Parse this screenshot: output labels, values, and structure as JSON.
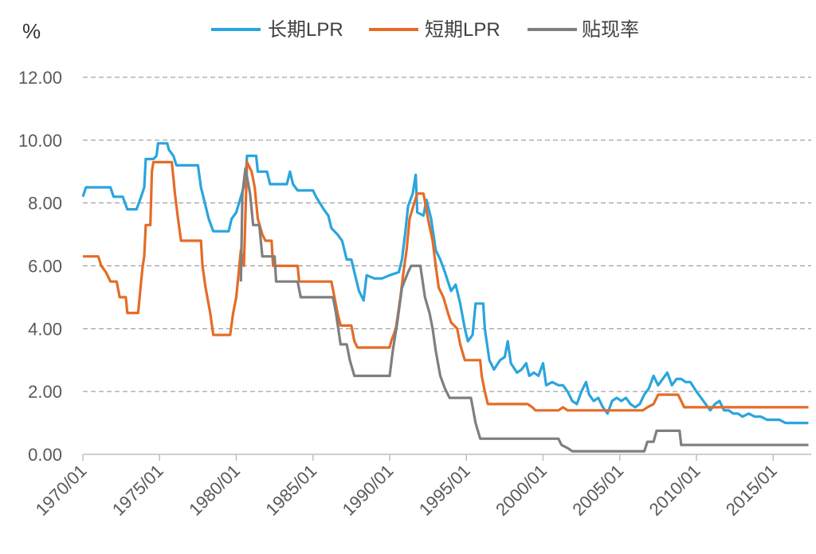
{
  "chart_data": {
    "type": "line",
    "unit_label": "%",
    "x_start": "1970/01",
    "x_tick_labels": [
      "1970/01",
      "1975/01",
      "1980/01",
      "1985/01",
      "1990/01",
      "1995/01",
      "2000/01",
      "2005/01",
      "2010/01",
      "2015/01"
    ],
    "y_tick_labels": [
      "0.00",
      "2.00",
      "4.00",
      "6.00",
      "8.00",
      "10.00",
      "12.00"
    ],
    "ylim": [
      0,
      12
    ],
    "grid": "horizontal dashed",
    "legend_position": "top-center",
    "series": [
      {
        "name": "长期LPR",
        "color": "#2aa5dd",
        "points": [
          [
            1970.0,
            8.2
          ],
          [
            1970.2,
            8.5
          ],
          [
            1971.8,
            8.5
          ],
          [
            1972.0,
            8.2
          ],
          [
            1972.6,
            8.2
          ],
          [
            1972.9,
            7.8
          ],
          [
            1973.5,
            7.8
          ],
          [
            1973.8,
            8.2
          ],
          [
            1974.0,
            8.5
          ],
          [
            1974.1,
            9.4
          ],
          [
            1974.6,
            9.4
          ],
          [
            1974.8,
            9.5
          ],
          [
            1974.9,
            9.9
          ],
          [
            1975.5,
            9.9
          ],
          [
            1975.6,
            9.7
          ],
          [
            1975.9,
            9.5
          ],
          [
            1976.1,
            9.2
          ],
          [
            1977.5,
            9.2
          ],
          [
            1977.7,
            8.5
          ],
          [
            1977.9,
            8.1
          ],
          [
            1978.2,
            7.5
          ],
          [
            1978.5,
            7.1
          ],
          [
            1979.5,
            7.1
          ],
          [
            1979.7,
            7.5
          ],
          [
            1980.0,
            7.7
          ],
          [
            1980.3,
            8.2
          ],
          [
            1980.6,
            8.7
          ],
          [
            1980.7,
            9.5
          ],
          [
            1981.3,
            9.5
          ],
          [
            1981.4,
            9.0
          ],
          [
            1982.0,
            9.0
          ],
          [
            1982.2,
            8.6
          ],
          [
            1983.3,
            8.6
          ],
          [
            1983.5,
            9.0
          ],
          [
            1983.7,
            8.6
          ],
          [
            1984.0,
            8.4
          ],
          [
            1984.5,
            8.4
          ],
          [
            1985.0,
            8.4
          ],
          [
            1985.2,
            8.2
          ],
          [
            1985.7,
            7.8
          ],
          [
            1986.0,
            7.6
          ],
          [
            1986.2,
            7.2
          ],
          [
            1986.6,
            7.0
          ],
          [
            1986.9,
            6.8
          ],
          [
            1987.2,
            6.2
          ],
          [
            1987.5,
            6.2
          ],
          [
            1987.8,
            5.6
          ],
          [
            1988.0,
            5.2
          ],
          [
            1988.3,
            4.9
          ],
          [
            1988.5,
            5.7
          ],
          [
            1989.0,
            5.6
          ],
          [
            1989.5,
            5.6
          ],
          [
            1990.0,
            5.7
          ],
          [
            1990.6,
            5.8
          ],
          [
            1990.8,
            6.2
          ],
          [
            1991.0,
            7.0
          ],
          [
            1991.2,
            7.9
          ],
          [
            1991.5,
            8.3
          ],
          [
            1991.7,
            8.9
          ],
          [
            1991.8,
            7.7
          ],
          [
            1992.2,
            7.6
          ],
          [
            1992.4,
            8.1
          ],
          [
            1992.7,
            7.5
          ],
          [
            1993.0,
            6.5
          ],
          [
            1993.3,
            6.2
          ],
          [
            1993.6,
            5.8
          ],
          [
            1994.0,
            5.2
          ],
          [
            1994.3,
            5.4
          ],
          [
            1994.6,
            4.8
          ],
          [
            1994.9,
            4.0
          ],
          [
            1995.1,
            3.6
          ],
          [
            1995.4,
            3.8
          ],
          [
            1995.6,
            4.8
          ],
          [
            1996.1,
            4.8
          ],
          [
            1996.2,
            4.0
          ],
          [
            1996.5,
            3.0
          ],
          [
            1996.8,
            2.7
          ],
          [
            1997.2,
            3.0
          ],
          [
            1997.5,
            3.1
          ],
          [
            1997.7,
            3.6
          ],
          [
            1997.9,
            2.9
          ],
          [
            1998.3,
            2.6
          ],
          [
            1998.6,
            2.7
          ],
          [
            1998.9,
            2.9
          ],
          [
            1999.1,
            2.5
          ],
          [
            1999.4,
            2.6
          ],
          [
            1999.7,
            2.5
          ],
          [
            2000.0,
            2.9
          ],
          [
            2000.2,
            2.2
          ],
          [
            2000.6,
            2.3
          ],
          [
            2001.0,
            2.2
          ],
          [
            2001.3,
            2.2
          ],
          [
            2001.6,
            2.0
          ],
          [
            2001.9,
            1.7
          ],
          [
            2002.2,
            1.6
          ],
          [
            2002.5,
            2.0
          ],
          [
            2002.8,
            2.3
          ],
          [
            2003.0,
            1.9
          ],
          [
            2003.3,
            1.7
          ],
          [
            2003.6,
            1.8
          ],
          [
            2003.9,
            1.5
          ],
          [
            2004.2,
            1.3
          ],
          [
            2004.5,
            1.7
          ],
          [
            2004.8,
            1.8
          ],
          [
            2005.1,
            1.7
          ],
          [
            2005.4,
            1.8
          ],
          [
            2005.7,
            1.6
          ],
          [
            2006.0,
            1.5
          ],
          [
            2006.3,
            1.6
          ],
          [
            2006.6,
            1.9
          ],
          [
            2006.9,
            2.1
          ],
          [
            2007.2,
            2.5
          ],
          [
            2007.5,
            2.2
          ],
          [
            2007.8,
            2.4
          ],
          [
            2008.1,
            2.6
          ],
          [
            2008.4,
            2.2
          ],
          [
            2008.7,
            2.4
          ],
          [
            2009.0,
            2.4
          ],
          [
            2009.3,
            2.3
          ],
          [
            2009.6,
            2.3
          ],
          [
            2010.0,
            2.0
          ],
          [
            2010.3,
            1.8
          ],
          [
            2010.6,
            1.6
          ],
          [
            2010.9,
            1.4
          ],
          [
            2011.2,
            1.6
          ],
          [
            2011.5,
            1.7
          ],
          [
            2011.8,
            1.4
          ],
          [
            2012.1,
            1.4
          ],
          [
            2012.4,
            1.3
          ],
          [
            2012.7,
            1.3
          ],
          [
            2013.0,
            1.2
          ],
          [
            2013.4,
            1.3
          ],
          [
            2013.8,
            1.2
          ],
          [
            2014.2,
            1.2
          ],
          [
            2014.6,
            1.1
          ],
          [
            2015.0,
            1.1
          ],
          [
            2015.4,
            1.1
          ],
          [
            2015.8,
            1.0
          ],
          [
            2016.2,
            1.0
          ],
          [
            2016.6,
            1.0
          ],
          [
            2017.0,
            1.0
          ],
          [
            2017.3,
            1.0
          ]
        ]
      },
      {
        "name": "短期LPR",
        "color": "#e46c27",
        "points": [
          [
            1970.0,
            6.3
          ],
          [
            1971.0,
            6.3
          ],
          [
            1971.2,
            6.0
          ],
          [
            1971.5,
            5.8
          ],
          [
            1971.8,
            5.5
          ],
          [
            1972.2,
            5.5
          ],
          [
            1972.4,
            5.0
          ],
          [
            1972.8,
            5.0
          ],
          [
            1972.9,
            4.5
          ],
          [
            1973.6,
            4.5
          ],
          [
            1973.7,
            5.0
          ],
          [
            1973.8,
            5.5
          ],
          [
            1973.9,
            6.0
          ],
          [
            1974.0,
            6.3
          ],
          [
            1974.1,
            7.3
          ],
          [
            1974.4,
            7.3
          ],
          [
            1974.5,
            9.0
          ],
          [
            1974.6,
            9.3
          ],
          [
            1975.8,
            9.3
          ],
          [
            1975.9,
            8.8
          ],
          [
            1976.0,
            8.3
          ],
          [
            1976.2,
            7.5
          ],
          [
            1976.4,
            6.8
          ],
          [
            1977.7,
            6.8
          ],
          [
            1977.8,
            6.0
          ],
          [
            1978.0,
            5.3
          ],
          [
            1978.3,
            4.5
          ],
          [
            1978.5,
            3.8
          ],
          [
            1979.6,
            3.8
          ],
          [
            1979.8,
            4.5
          ],
          [
            1980.0,
            5.0
          ],
          [
            1980.1,
            5.5
          ],
          [
            1980.3,
            6.5
          ],
          [
            1980.5,
            6.0
          ],
          [
            1980.7,
            9.3
          ],
          [
            1981.0,
            9.0
          ],
          [
            1981.2,
            8.5
          ],
          [
            1981.4,
            7.5
          ],
          [
            1981.7,
            7.0
          ],
          [
            1981.9,
            6.8
          ],
          [
            1982.3,
            6.8
          ],
          [
            1982.4,
            6.0
          ],
          [
            1984.0,
            6.0
          ],
          [
            1984.1,
            5.5
          ],
          [
            1986.2,
            5.5
          ],
          [
            1986.4,
            5.0
          ],
          [
            1986.6,
            4.5
          ],
          [
            1986.8,
            4.1
          ],
          [
            1987.5,
            4.1
          ],
          [
            1987.7,
            3.6
          ],
          [
            1987.9,
            3.4
          ],
          [
            1990.0,
            3.4
          ],
          [
            1990.1,
            3.6
          ],
          [
            1990.4,
            4.0
          ],
          [
            1990.7,
            5.0
          ],
          [
            1990.9,
            5.8
          ],
          [
            1991.1,
            6.5
          ],
          [
            1991.3,
            7.5
          ],
          [
            1991.6,
            8.0
          ],
          [
            1991.8,
            8.3
          ],
          [
            1992.2,
            8.3
          ],
          [
            1992.5,
            7.5
          ],
          [
            1992.8,
            6.8
          ],
          [
            1993.0,
            6.0
          ],
          [
            1993.2,
            5.3
          ],
          [
            1993.5,
            5.0
          ],
          [
            1993.8,
            4.5
          ],
          [
            1994.0,
            4.2
          ],
          [
            1994.4,
            4.0
          ],
          [
            1994.6,
            3.5
          ],
          [
            1994.9,
            3.0
          ],
          [
            1995.9,
            3.0
          ],
          [
            1996.0,
            2.5
          ],
          [
            1996.2,
            2.0
          ],
          [
            1996.4,
            1.6
          ],
          [
            1999.0,
            1.6
          ],
          [
            1999.3,
            1.5
          ],
          [
            1999.5,
            1.4
          ],
          [
            2001.0,
            1.4
          ],
          [
            2001.3,
            1.5
          ],
          [
            2001.6,
            1.4
          ],
          [
            2006.5,
            1.4
          ],
          [
            2006.8,
            1.5
          ],
          [
            2007.2,
            1.6
          ],
          [
            2007.5,
            1.9
          ],
          [
            2008.8,
            1.9
          ],
          [
            2009.0,
            1.7
          ],
          [
            2009.2,
            1.5
          ],
          [
            2017.3,
            1.5
          ]
        ]
      },
      {
        "name": "贴现率",
        "color": "#7f7f7f",
        "points": [
          [
            1980.3,
            5.5
          ],
          [
            1980.4,
            8.3
          ],
          [
            1980.6,
            9.1
          ],
          [
            1980.9,
            8.3
          ],
          [
            1981.1,
            7.3
          ],
          [
            1981.5,
            7.3
          ],
          [
            1981.7,
            6.3
          ],
          [
            1982.5,
            6.3
          ],
          [
            1982.6,
            5.5
          ],
          [
            1984.0,
            5.5
          ],
          [
            1984.2,
            5.0
          ],
          [
            1986.3,
            5.0
          ],
          [
            1986.5,
            4.5
          ],
          [
            1986.8,
            3.5
          ],
          [
            1987.2,
            3.5
          ],
          [
            1987.4,
            3.0
          ],
          [
            1987.7,
            2.5
          ],
          [
            1990.0,
            2.5
          ],
          [
            1990.2,
            3.3
          ],
          [
            1990.5,
            4.2
          ],
          [
            1990.8,
            5.3
          ],
          [
            1991.2,
            5.8
          ],
          [
            1991.4,
            6.0
          ],
          [
            1992.0,
            6.0
          ],
          [
            1992.3,
            5.0
          ],
          [
            1992.6,
            4.5
          ],
          [
            1992.8,
            4.0
          ],
          [
            1993.0,
            3.3
          ],
          [
            1993.3,
            2.5
          ],
          [
            1993.6,
            2.1
          ],
          [
            1993.9,
            1.8
          ],
          [
            1995.3,
            1.8
          ],
          [
            1995.6,
            1.0
          ],
          [
            1995.9,
            0.5
          ],
          [
            2001.0,
            0.5
          ],
          [
            2001.2,
            0.3
          ],
          [
            2001.6,
            0.2
          ],
          [
            2001.9,
            0.1
          ],
          [
            2006.6,
            0.1
          ],
          [
            2006.8,
            0.4
          ],
          [
            2007.2,
            0.4
          ],
          [
            2007.4,
            0.75
          ],
          [
            2008.9,
            0.75
          ],
          [
            2009.0,
            0.3
          ],
          [
            2017.3,
            0.3
          ]
        ]
      }
    ]
  }
}
